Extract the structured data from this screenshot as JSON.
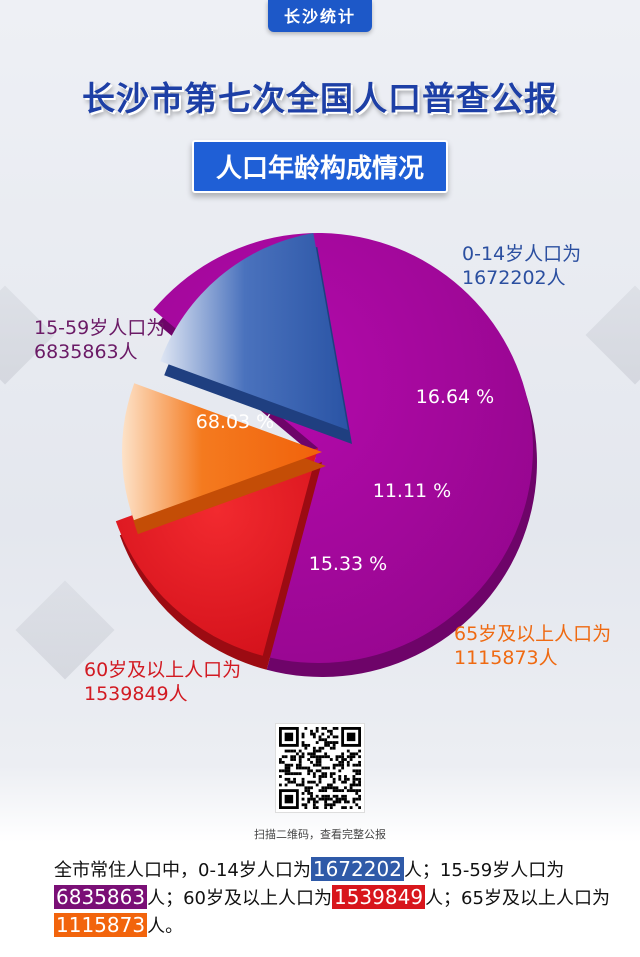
{
  "header": {
    "brand": "长沙统计",
    "title": "长沙市第七次全国人口普查公报",
    "subtitle": "人口年龄构成情况"
  },
  "chart_data": {
    "type": "pie",
    "slices": [
      {
        "label_line1": "15-59岁人口为",
        "label_line2": "6835863人",
        "value": 6835863,
        "pct_label": "68.03 %",
        "pct": 68.03,
        "color": "#a6069e"
      },
      {
        "label_line1": "60岁及以上人口为",
        "label_line2": "1539849人",
        "value": 1539849,
        "pct_label": "15.33 %",
        "pct": 15.33,
        "color": "#e5141b"
      },
      {
        "label_line1": "65岁及以上人口为",
        "label_line2": "1115873人",
        "value": 1115873,
        "pct_label": "11.11 %",
        "pct": 11.11,
        "color": "#f46a0d"
      },
      {
        "label_line1": "0-14岁人口为",
        "label_line2": "1672202人",
        "value": 1672202,
        "pct_label": "16.64 %",
        "pct": 16.64,
        "color": "#2c58a8"
      }
    ],
    "label_colors": [
      "#6b1a66",
      "#d21a22",
      "#ef6a12",
      "#2b4fa0"
    ]
  },
  "footer": {
    "qr_caption": "扫描二维码，查看完整公报",
    "summary": {
      "p1": "全市常住人口中，0-14岁人口为",
      "v1": "1672202",
      "p2": "人；15-59岁人口为",
      "v2": "6835863",
      "p3": "人；60岁及以上人口为",
      "v3": "1539849",
      "p4": "人；65岁及以上人口为",
      "v4": "1115873",
      "p5": "人。"
    }
  }
}
